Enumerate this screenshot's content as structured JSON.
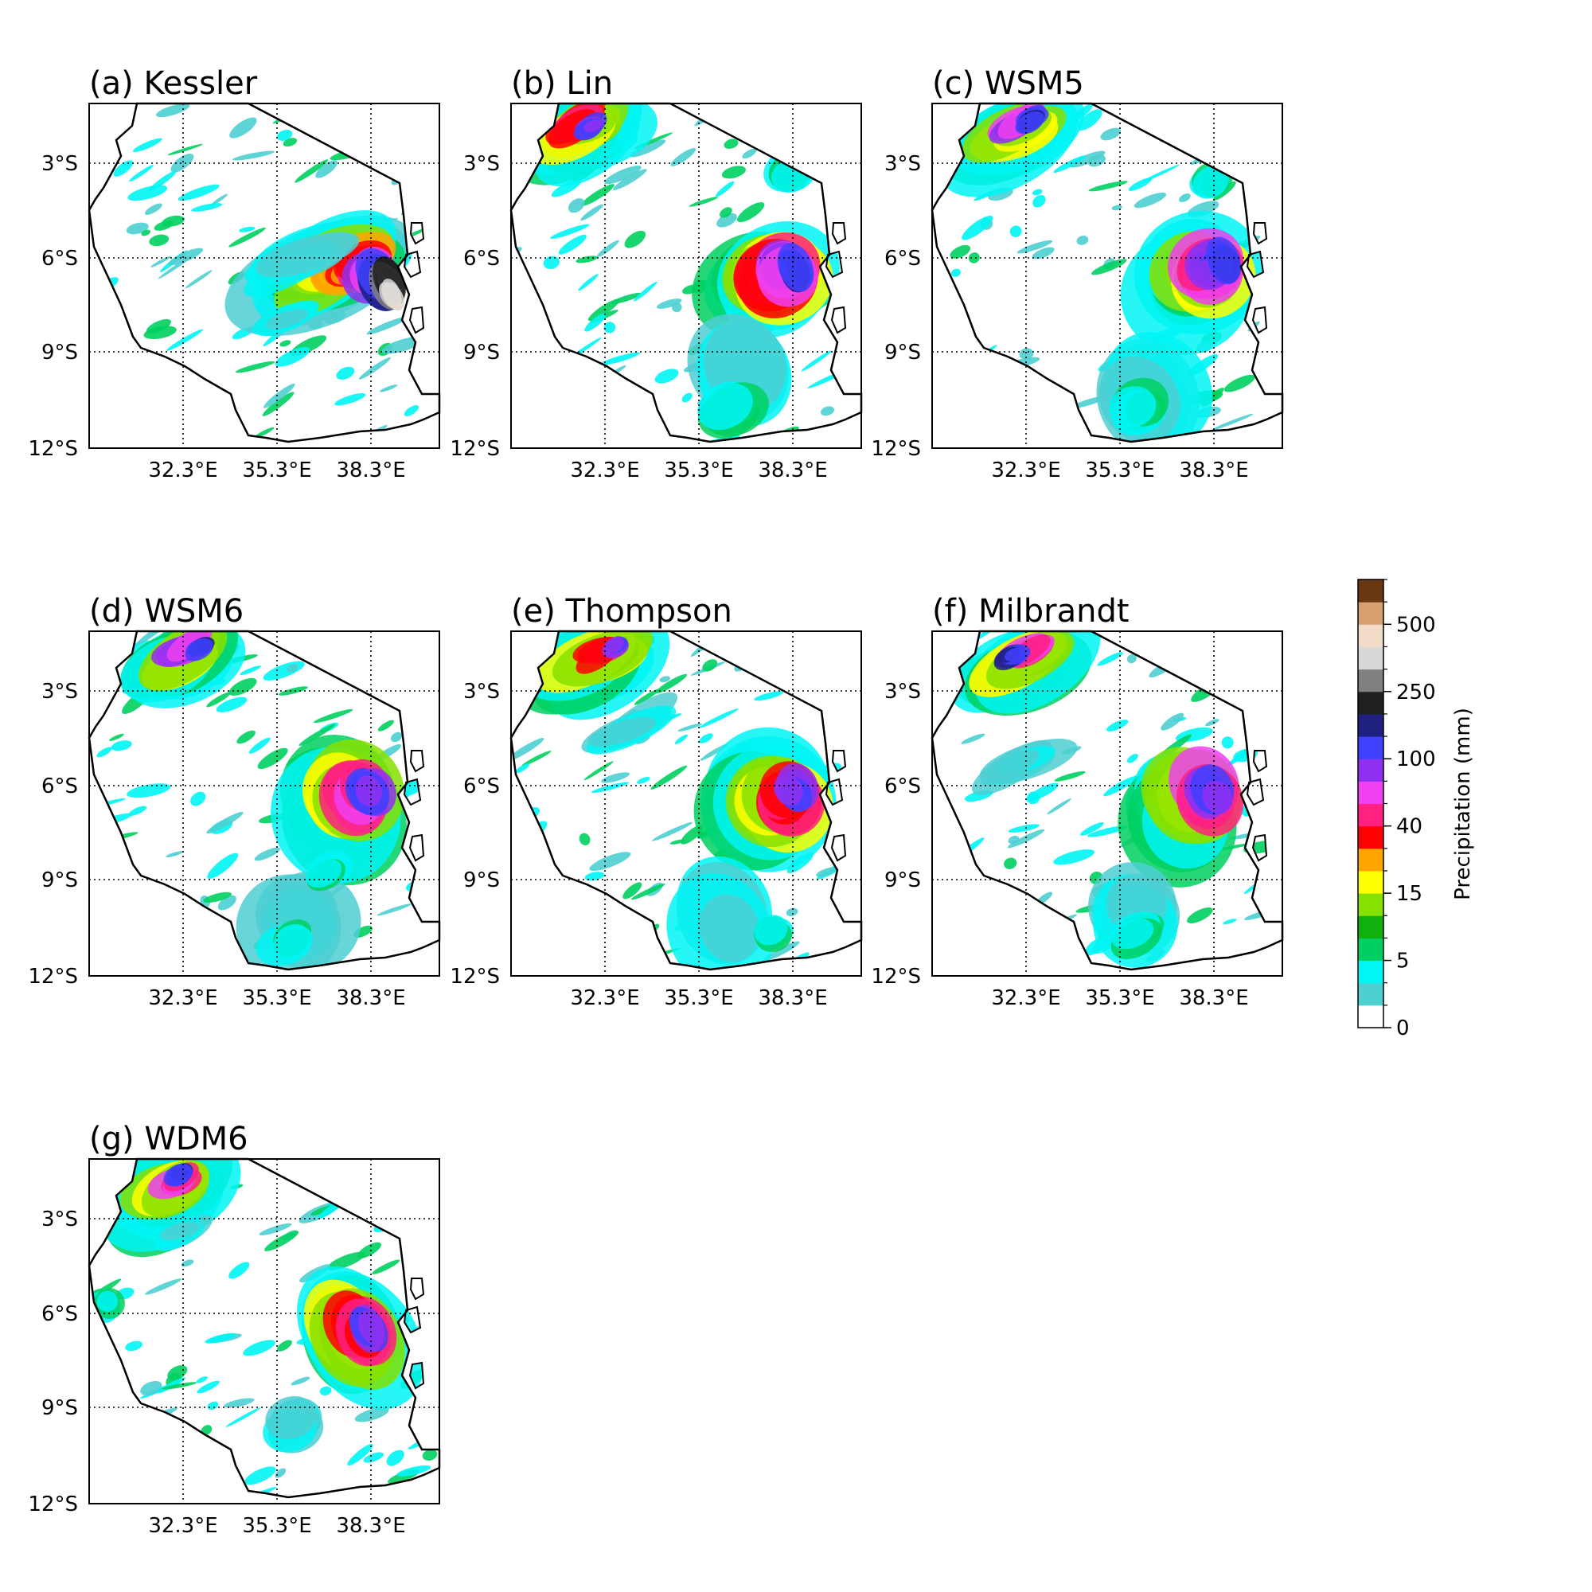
{
  "figure": {
    "panels": [
      {
        "id": "a",
        "title": "(a) Kessler",
        "scheme": "kessler"
      },
      {
        "id": "b",
        "title": "(b) Lin",
        "scheme": "lin"
      },
      {
        "id": "c",
        "title": "(c) WSM5",
        "scheme": "wsm5"
      },
      {
        "id": "d",
        "title": "(d) WSM6",
        "scheme": "wsm6"
      },
      {
        "id": "e",
        "title": "(e) Thompson",
        "scheme": "thompson"
      },
      {
        "id": "f",
        "title": "(f) Milbrandt",
        "scheme": "milbrandt"
      },
      {
        "id": "g",
        "title": "(g) WDM6",
        "scheme": "wdm6"
      }
    ],
    "lat_ticks": [
      "3°S",
      "6°S",
      "9°S",
      "12°S"
    ],
    "lon_ticks": [
      "32.3°E",
      "35.3°E",
      "38.3°E"
    ],
    "colorbar": {
      "label": "Precipitation (mm)",
      "tick_labels": [
        "0",
        "5",
        "15",
        "40",
        "100",
        "250",
        "500"
      ],
      "colors": [
        "#ffffff",
        "#4ecfd2",
        "#00f5f5",
        "#00d060",
        "#10b010",
        "#86e000",
        "#ffff00",
        "#ffa500",
        "#ff0000",
        "#ff2080",
        "#f040f0",
        "#9030f0",
        "#4040ff",
        "#202080",
        "#202020",
        "#808080",
        "#d8d8d8",
        "#f2dcc8",
        "#d8a070",
        "#6a3810"
      ]
    }
  },
  "chart_data": {
    "type": "heatmap",
    "variable": "Precipitation (mm)",
    "lat_ticks": [
      -3,
      -6,
      -9,
      -12
    ],
    "lon_ticks": [
      32.3,
      35.3,
      38.3
    ],
    "colorbar_levels": [
      0,
      5,
      15,
      40,
      100,
      250,
      500
    ],
    "panels": [
      "(a) Kessler",
      "(b) Lin",
      "(c) WSM5",
      "(d) WSM6",
      "(e) Thompson",
      "(f) Milbrandt",
      "(g) WDM6"
    ]
  }
}
